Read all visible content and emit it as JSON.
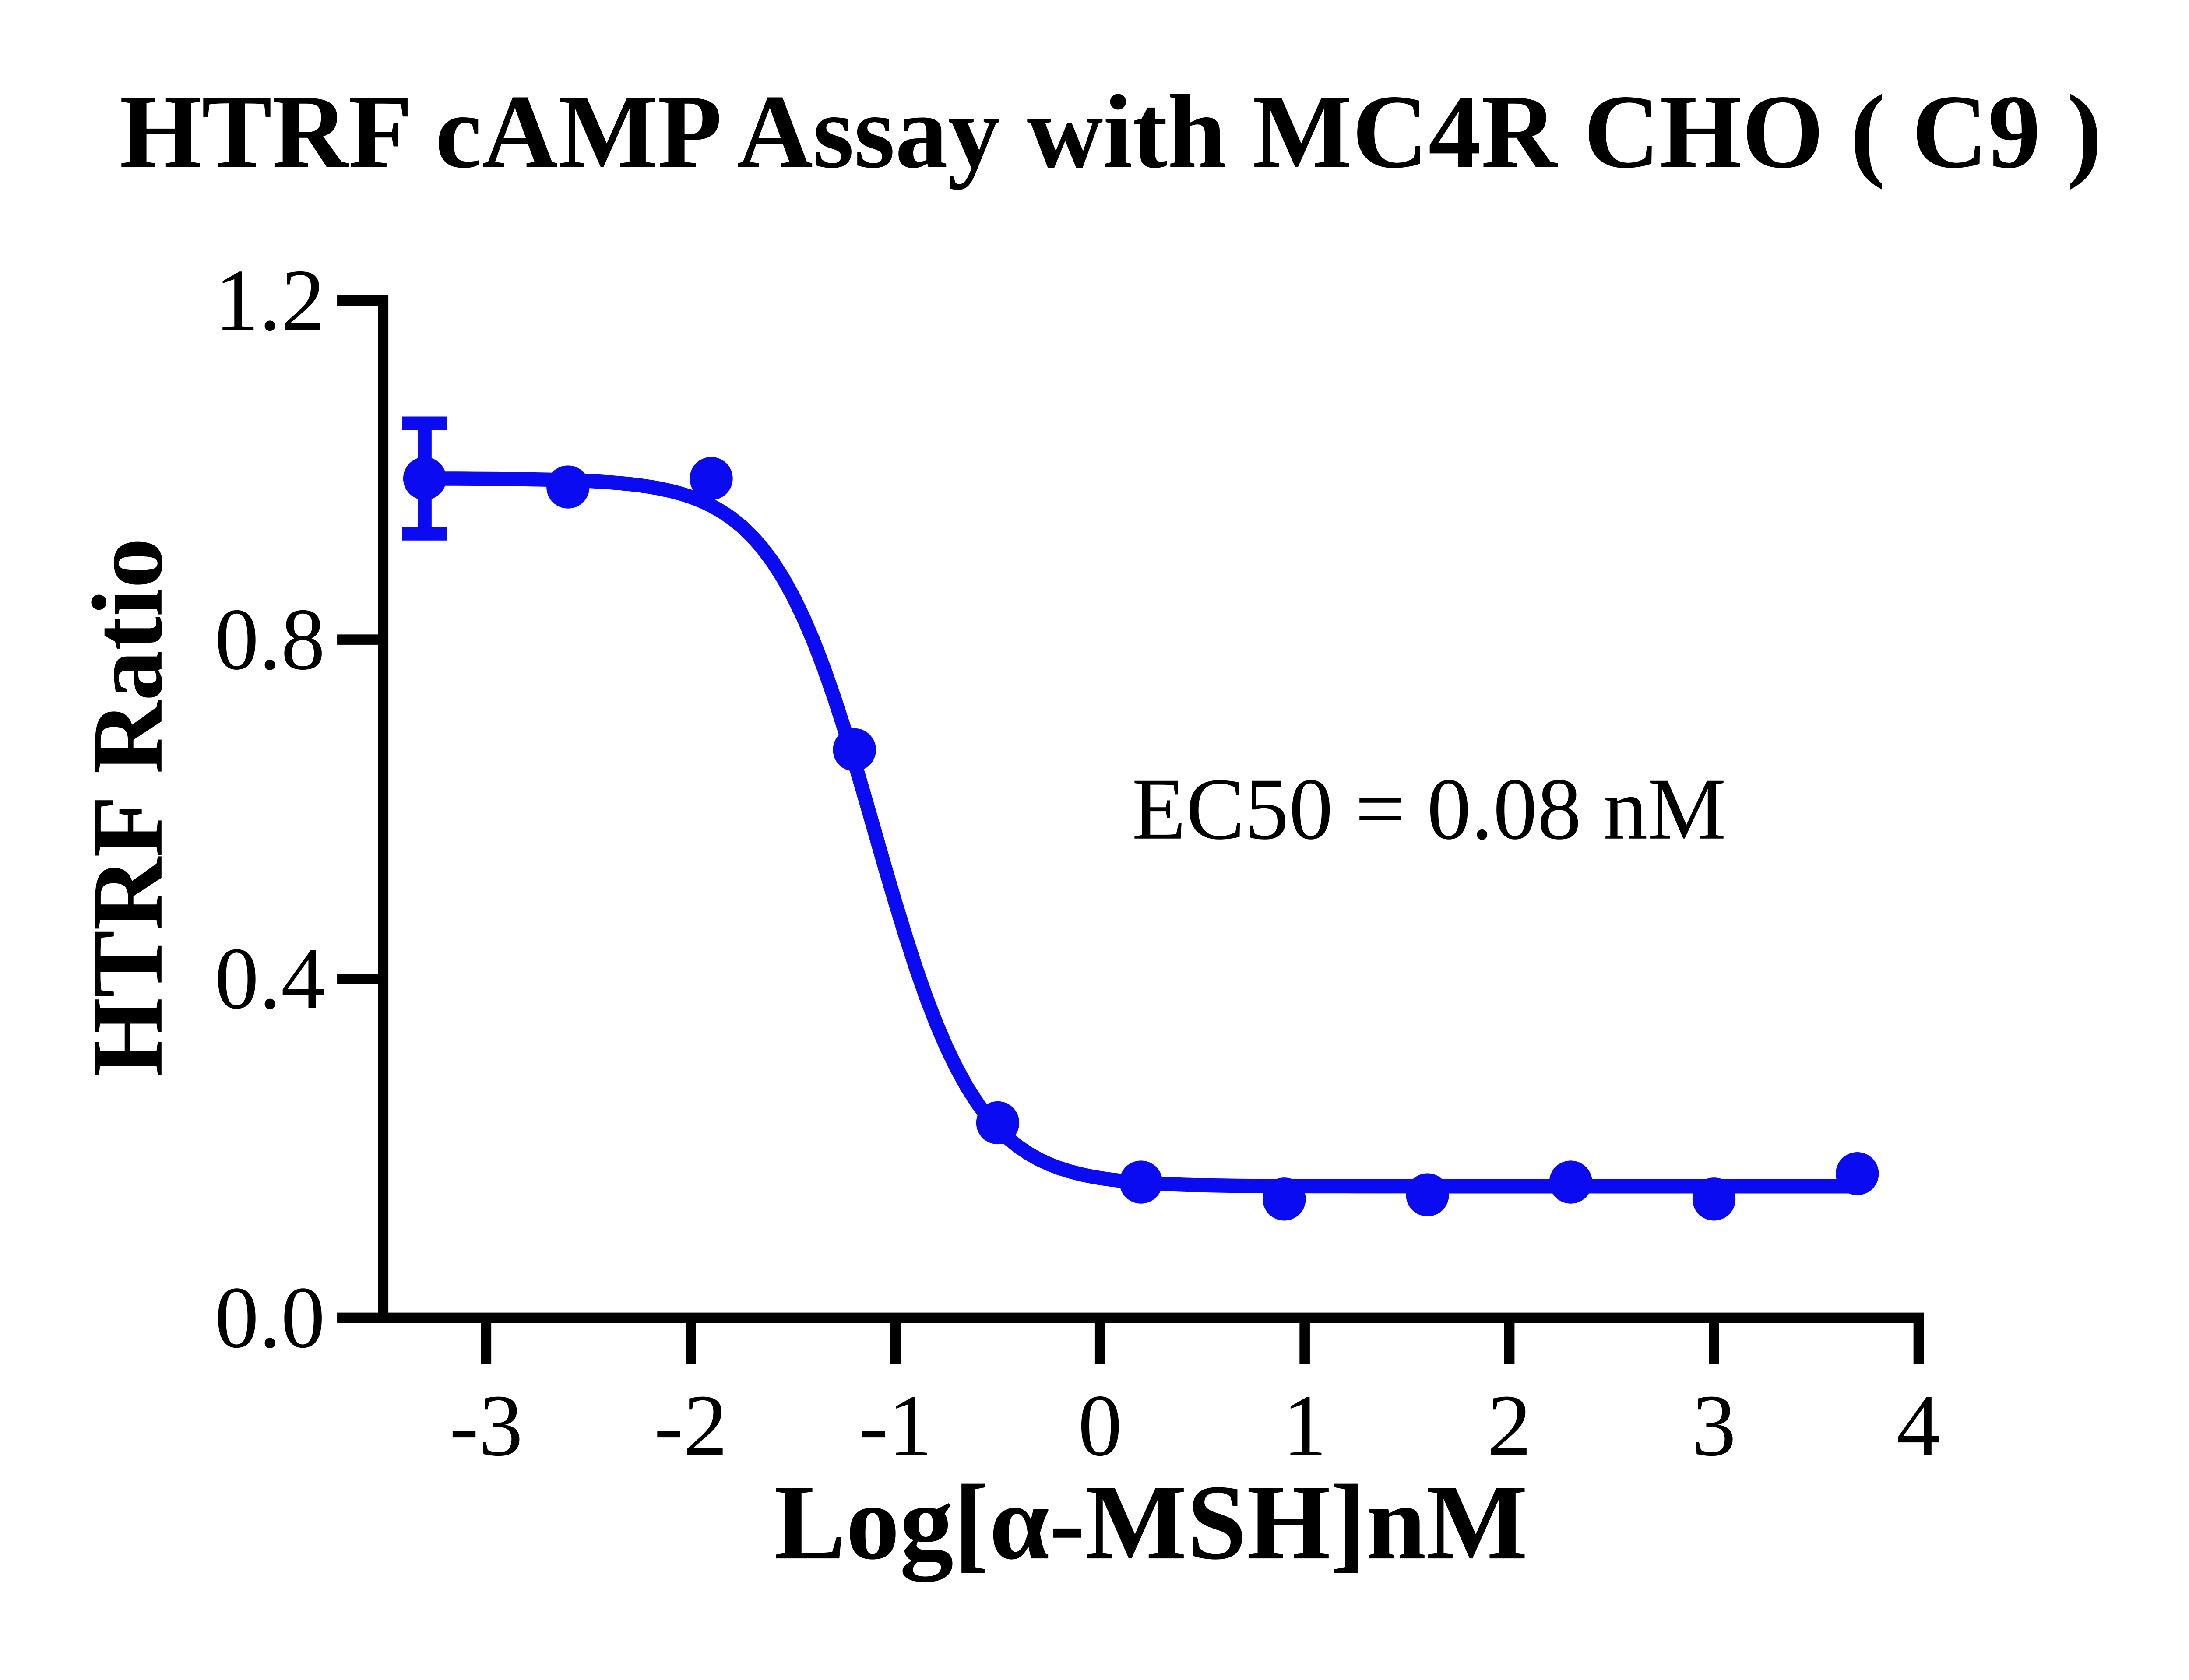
{
  "title": {
    "text": "HTRF cAMP Assay with MC4R CHO ( C9 )"
  },
  "annotation": {
    "text": "EC50 = 0.08 nM"
  },
  "chart_data": {
    "type": "scatter",
    "title": "HTRF cAMP Assay with MC4R CHO ( C9 )",
    "xlabel": "Log[α-MSH]nM",
    "ylabel": "HTRF Ratio",
    "x": [
      -3.3,
      -2.6,
      -1.9,
      -1.2,
      -0.5,
      0.2,
      0.9,
      1.6,
      2.3,
      3.0,
      3.7
    ],
    "y": [
      0.99,
      0.98,
      0.99,
      0.67,
      0.23,
      0.16,
      0.14,
      0.145,
      0.16,
      0.14,
      0.17
    ],
    "y_err": [
      0.065,
      0,
      0,
      0,
      0,
      0,
      0,
      0,
      0,
      0,
      0
    ],
    "x_ticks": [
      -3,
      -2,
      -1,
      0,
      1,
      2,
      3,
      4
    ],
    "y_ticks": [
      "0.0",
      "0.4",
      "0.8",
      "1.2"
    ],
    "xlim": [
      -3.5,
      4.0
    ],
    "ylim": [
      0,
      1.2
    ],
    "curve_fit": {
      "model": "four_parameter_logistic",
      "top": 0.99,
      "bottom": 0.155,
      "log_ec50": -1.1,
      "hill_slope": 1.75
    },
    "ec50_nM": 0.08,
    "ec50_label": "EC50 = 0.08 nM",
    "series_color": "#0b0bf2",
    "axis_color": "#000000",
    "background": "#ffffff",
    "grid": false,
    "legend": null
  }
}
